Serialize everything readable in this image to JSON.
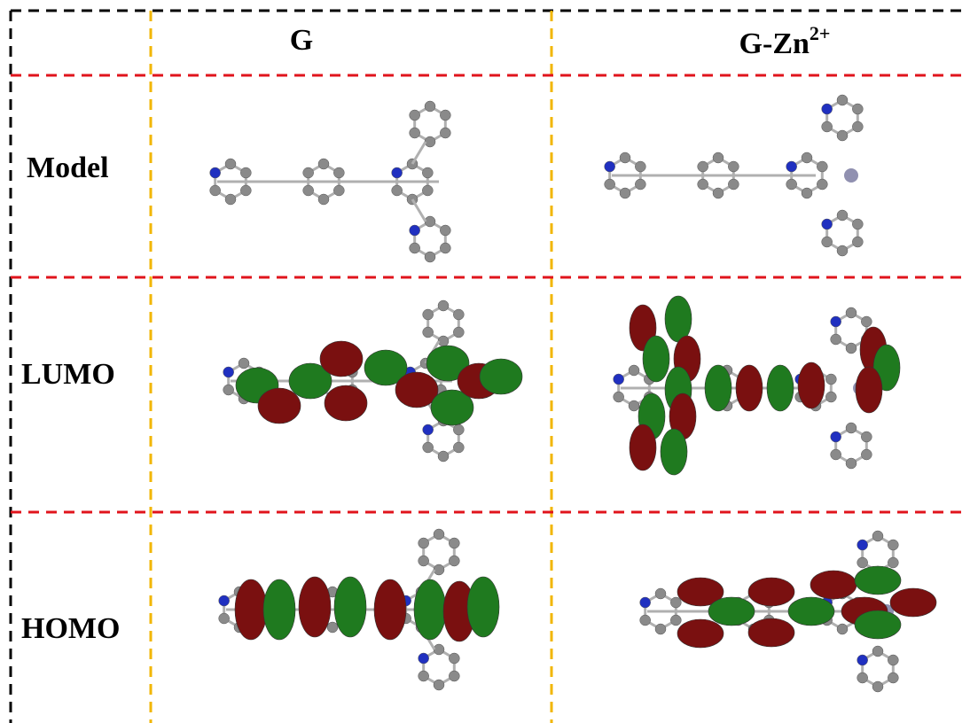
{
  "header": {
    "columns": [
      {
        "text": "G"
      },
      {
        "text": "G-Zn",
        "superscript": "2+"
      }
    ]
  },
  "rows": [
    {
      "label": "Model"
    },
    {
      "label": "LUMO"
    },
    {
      "label": "HOMO"
    }
  ]
}
